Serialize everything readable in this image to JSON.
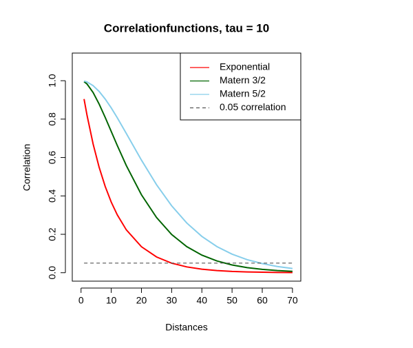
{
  "chart_data": {
    "type": "line",
    "title": "Correlationfunctions, tau = 10",
    "xlabel": "Distances",
    "ylabel": "Correlation",
    "x": [
      1,
      2,
      4,
      6,
      8,
      10,
      12,
      15,
      20,
      25,
      30,
      35,
      40,
      45,
      50,
      55,
      60,
      65,
      70
    ],
    "series": [
      {
        "name": "Exponential",
        "color": "#ff0000",
        "values": [
          0.9048,
          0.8187,
          0.6703,
          0.5488,
          0.4493,
          0.3679,
          0.3012,
          0.2231,
          0.1353,
          0.0821,
          0.0498,
          0.0302,
          0.0183,
          0.0111,
          0.0067,
          0.0041,
          0.0025,
          0.0015,
          0.0009
        ]
      },
      {
        "name": "Matern 3/2",
        "color": "#006400",
        "values": [
          0.9953,
          0.9825,
          0.9384,
          0.8781,
          0.8088,
          0.7358,
          0.6626,
          0.5578,
          0.406,
          0.2873,
          0.1991,
          0.1359,
          0.0916,
          0.0611,
          0.0404,
          0.0266,
          0.0174,
          0.0113,
          0.0073
        ]
      },
      {
        "name": "Matern 5/2",
        "color": "#87ceeb",
        "values": [
          0.9983,
          0.9934,
          0.9742,
          0.944,
          0.9046,
          0.8584,
          0.8072,
          0.7251,
          0.5865,
          0.4582,
          0.3486,
          0.259,
          0.1892,
          0.136,
          0.0966,
          0.068,
          0.0475,
          0.0324,
          0.0219
        ]
      },
      {
        "name": "0.05 correlation",
        "color": "#555555",
        "dash": true,
        "values": [
          0.05,
          0.05,
          0.05,
          0.05,
          0.05,
          0.05,
          0.05,
          0.05,
          0.05,
          0.05,
          0.05,
          0.05,
          0.05,
          0.05,
          0.05,
          0.05,
          0.05,
          0.05,
          0.05
        ]
      }
    ],
    "xlim": [
      -1.76,
      72.76
    ],
    "xticks": [
      0,
      10,
      20,
      30,
      40,
      50,
      60,
      70
    ],
    "ylim": [
      -0.044,
      1.144
    ],
    "yticks": [
      {
        "value": 0,
        "label": "0.0"
      },
      0.2,
      0.4,
      0.6,
      0.8,
      {
        "value": 1,
        "label": "1.0"
      }
    ],
    "legend": "topright"
  }
}
